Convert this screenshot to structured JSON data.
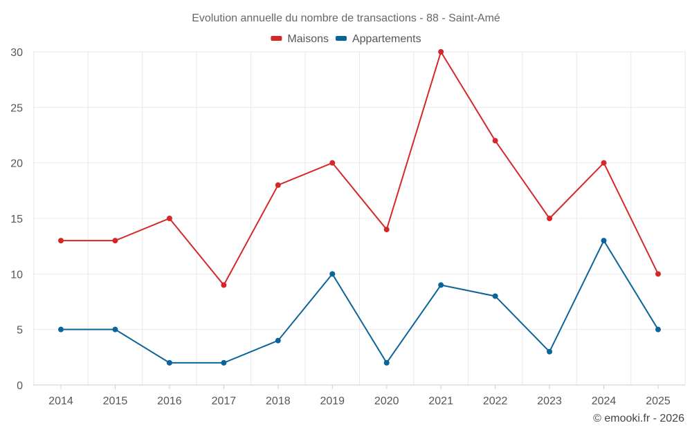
{
  "chart_data": {
    "type": "line",
    "title": "Evolution annuelle du nombre de transactions - 88 - Saint-Amé",
    "categories": [
      "2014",
      "2015",
      "2016",
      "2017",
      "2018",
      "2019",
      "2020",
      "2021",
      "2022",
      "2023",
      "2024",
      "2025"
    ],
    "series": [
      {
        "name": "Maisons",
        "color": "#d62728",
        "values": [
          13,
          13,
          15,
          9,
          18,
          20,
          14,
          30,
          22,
          15,
          20,
          10
        ]
      },
      {
        "name": "Appartements",
        "color": "#0a6399",
        "values": [
          5,
          5,
          2,
          2,
          4,
          10,
          2,
          9,
          8,
          3,
          13,
          5
        ]
      }
    ],
    "ylim": [
      0,
      30
    ],
    "yticks": [
      0,
      5,
      10,
      15,
      20,
      25,
      30
    ],
    "xlabel": "",
    "ylabel": "",
    "legend": "top-center",
    "grid": true
  },
  "credit": "© emooki.fr - 2026"
}
